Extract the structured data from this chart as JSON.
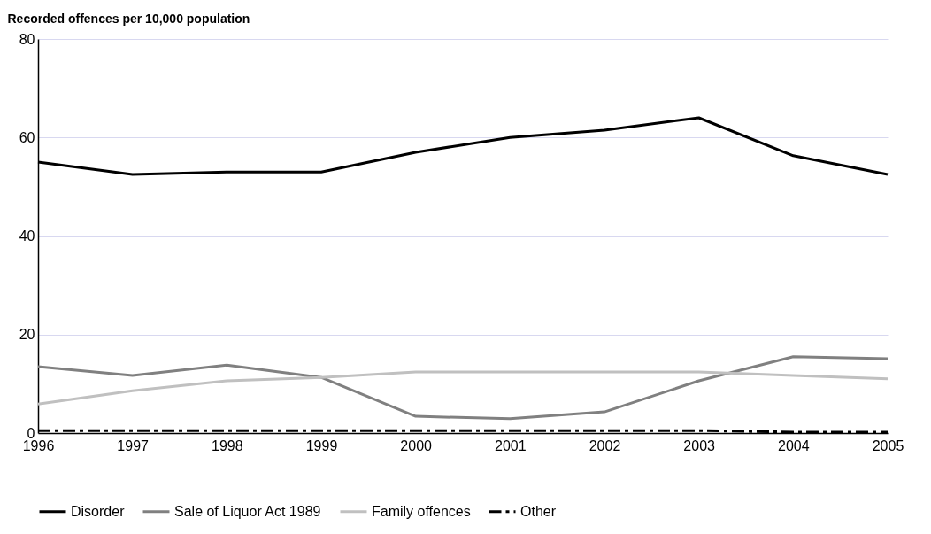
{
  "chart_data": {
    "type": "line",
    "ylabel": "Recorded offences per 10,000 population",
    "categories": [
      "1996",
      "1997",
      "1998",
      "1999",
      "2000",
      "2001",
      "2002",
      "2003",
      "2004",
      "2005"
    ],
    "series": [
      {
        "name": "Disorder",
        "color": "#000000",
        "line_style": "solid",
        "values": [
          55,
          52.5,
          53,
          53,
          57,
          60,
          61.5,
          64,
          56.3,
          52.5
        ]
      },
      {
        "name": "Sale of Liquor Act 1989",
        "color": "#808080",
        "line_style": "solid",
        "values": [
          13.5,
          11.7,
          13.8,
          11.3,
          3.4,
          2.9,
          4.3,
          10.6,
          15.5,
          15.1
        ]
      },
      {
        "name": "Family offences",
        "color": "#c0c0c0",
        "line_style": "solid",
        "values": [
          5.9,
          8.6,
          10.6,
          11.3,
          12.4,
          12.4,
          12.4,
          12.4,
          11.7,
          11
        ]
      },
      {
        "name": "Other",
        "color": "#000000",
        "line_style": "dashed",
        "values": [
          0.5,
          0.5,
          0.5,
          0.5,
          0.5,
          0.5,
          0.5,
          0.5,
          0.2,
          0.2
        ]
      }
    ],
    "ylim": [
      0,
      80
    ],
    "yticks": [
      0,
      20,
      40,
      60,
      80
    ],
    "grid": "y",
    "legend": "bottom",
    "marker": "none"
  }
}
